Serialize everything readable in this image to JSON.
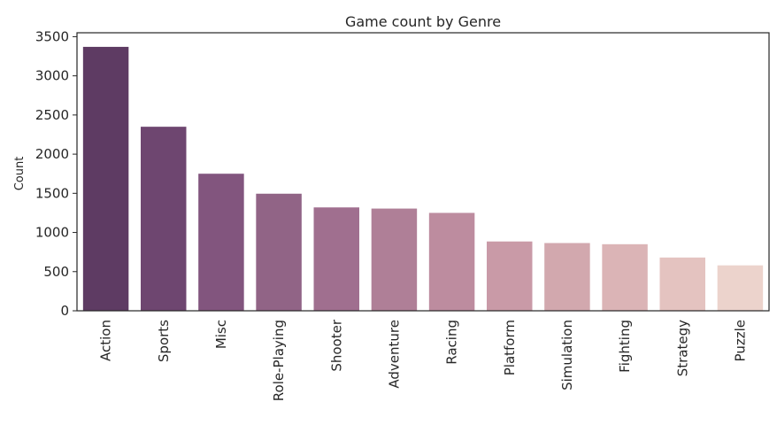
{
  "chart_data": {
    "type": "bar",
    "title": "Game count by Genre",
    "xlabel": "",
    "ylabel": "Count",
    "ylim": [
      0,
      3550
    ],
    "yticks": [
      0,
      500,
      1000,
      1500,
      2000,
      2500,
      3000,
      3500
    ],
    "categories": [
      "Action",
      "Sports",
      "Misc",
      "Role-Playing",
      "Shooter",
      "Adventure",
      "Racing",
      "Platform",
      "Simulation",
      "Fighting",
      "Strategy",
      "Puzzle"
    ],
    "values": [
      3370,
      2350,
      1750,
      1495,
      1320,
      1305,
      1250,
      885,
      865,
      850,
      680,
      580
    ],
    "colors": [
      "#5e3b63",
      "#6e4670",
      "#82557e",
      "#916486",
      "#a06f8f",
      "#af7f97",
      "#bd8c9f",
      "#c99aa7",
      "#d2a8ae",
      "#dbb4b6",
      "#e4c3c0",
      "#ecd3cc"
    ],
    "grid": false,
    "legend": "none"
  }
}
